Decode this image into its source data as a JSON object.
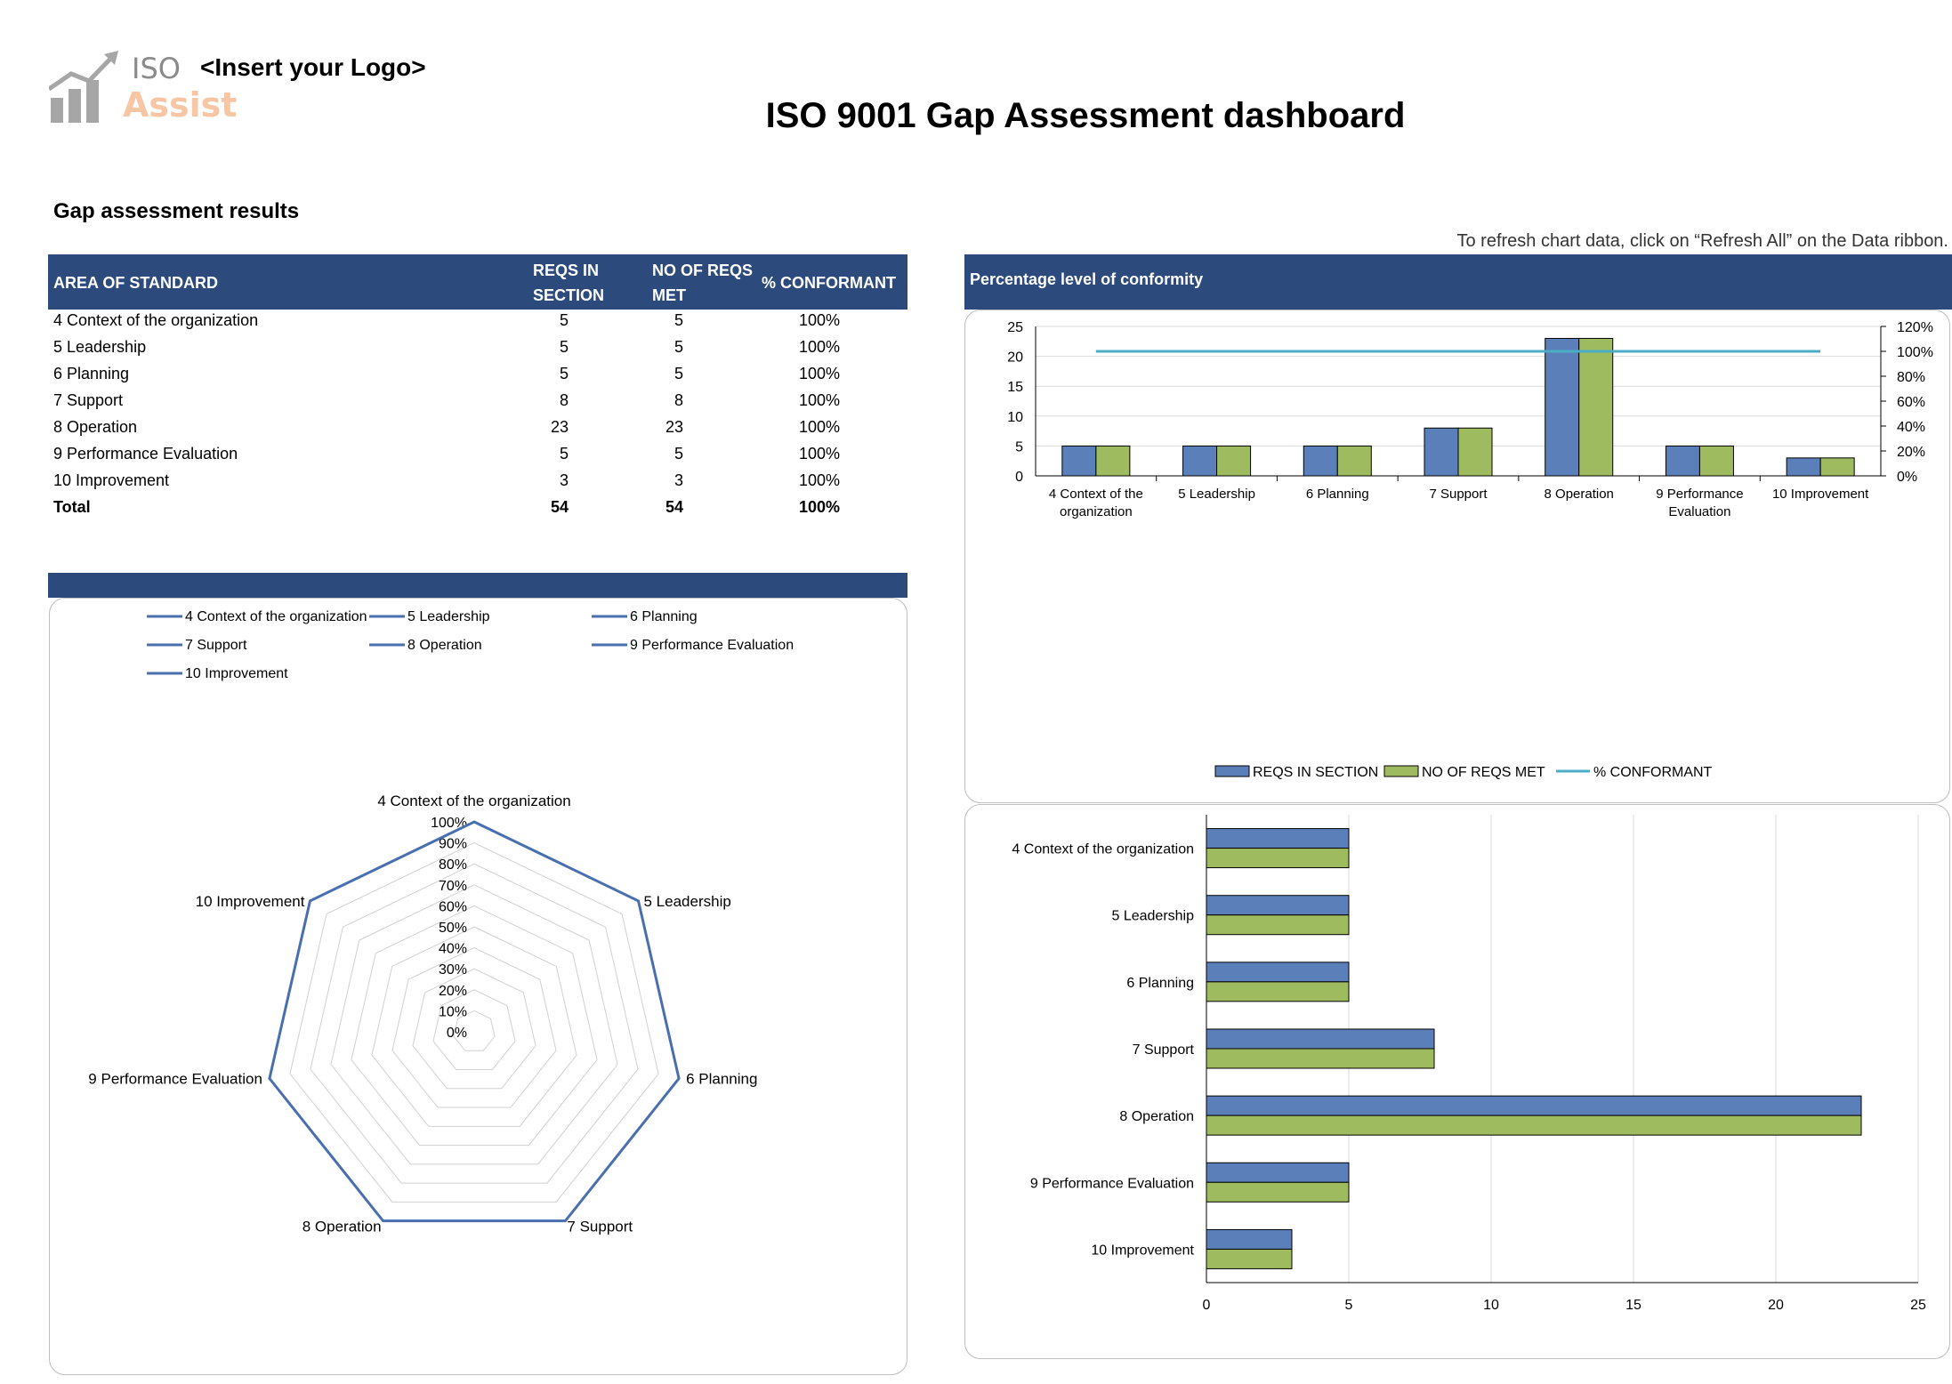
{
  "header": {
    "logo_top": "ISO",
    "logo_bottom": "Assist",
    "insert_logo": "<Insert your Logo>",
    "title": "ISO 9001 Gap Assessment dashboard"
  },
  "section_title": "Gap assessment results",
  "refresh_note": "To refresh chart data, click on “Refresh All” on the Data ribbon.",
  "table": {
    "headers": {
      "area": "AREA OF STANDARD",
      "reqs_1": "REQS IN",
      "reqs_2": "SECTION",
      "met_1": "NO OF REQS",
      "met_2": "MET",
      "pct": "% CONFORMANT"
    },
    "rows": [
      {
        "area": "4 Context of the organization",
        "reqs": "5",
        "met": "5",
        "pct": "100%"
      },
      {
        "area": "5 Leadership",
        "reqs": "5",
        "met": "5",
        "pct": "100%"
      },
      {
        "area": "6 Planning",
        "reqs": "5",
        "met": "5",
        "pct": "100%"
      },
      {
        "area": "7 Support",
        "reqs": "8",
        "met": "8",
        "pct": "100%"
      },
      {
        "area": "8 Operation",
        "reqs": "23",
        "met": "23",
        "pct": "100%"
      },
      {
        "area": "9 Performance Evaluation",
        "reqs": "5",
        "met": "5",
        "pct": "100%"
      },
      {
        "area": "10 Improvement",
        "reqs": "3",
        "met": "3",
        "pct": "100%"
      }
    ],
    "total": {
      "area": "Total",
      "reqs": "54",
      "met": "54",
      "pct": "100%"
    }
  },
  "colors": {
    "band": "#2d4a7c",
    "series_reqs": "#5b7fb9",
    "series_met": "#9fbb5f",
    "series_pct": "#4bacc6",
    "radar_line": "#4a6fae"
  },
  "chart_data": [
    {
      "type": "bar",
      "title": "Percentage level of conformity",
      "categories": [
        "4 Context of the organization",
        "5 Leadership",
        "6 Planning",
        "7 Support",
        "8 Operation",
        "9 Performance Evaluation",
        "10 Improvement"
      ],
      "series": [
        {
          "name": "REQS IN SECTION",
          "values": [
            5,
            5,
            5,
            8,
            23,
            5,
            3
          ],
          "axis": "primary"
        },
        {
          "name": "NO OF REQS MET",
          "values": [
            5,
            5,
            5,
            8,
            23,
            5,
            3
          ],
          "axis": "primary"
        },
        {
          "name": "% CONFORMANT",
          "type": "line",
          "values": [
            1,
            1,
            1,
            1,
            1,
            1,
            1
          ],
          "axis": "secondary"
        }
      ],
      "ylim": [
        0,
        25
      ],
      "yticks": [
        "0",
        "5",
        "10",
        "15",
        "20",
        "25"
      ],
      "y2lim": [
        0,
        1.2
      ],
      "y2ticks": [
        "0%",
        "20%",
        "40%",
        "60%",
        "80%",
        "100%",
        "120%"
      ],
      "grid": true,
      "legend": "bottom"
    },
    {
      "type": "radar",
      "categories": [
        "4 Context of the organization",
        "5 Leadership",
        "6 Planning",
        "7 Support",
        "8 Operation",
        "9 Performance Evaluation",
        "10 Improvement"
      ],
      "values": [
        1,
        1,
        1,
        1,
        1,
        1,
        1
      ],
      "rlim": [
        0,
        1
      ],
      "rticks": [
        "0%",
        "10%",
        "20%",
        "30%",
        "40%",
        "50%",
        "60%",
        "70%",
        "80%",
        "90%",
        "100%"
      ],
      "legend": "top",
      "legend_entries": [
        "4 Context of the organization",
        "5 Leadership",
        "6 Planning",
        "7 Support",
        "8 Operation",
        "9 Performance Evaluation",
        "10 Improvement"
      ]
    },
    {
      "type": "bar",
      "orientation": "horizontal",
      "categories": [
        "4 Context of the organization",
        "5 Leadership",
        "6 Planning",
        "7 Support",
        "8 Operation",
        "9 Performance Evaluation",
        "10 Improvement"
      ],
      "series": [
        {
          "values": [
            5,
            5,
            5,
            8,
            23,
            5,
            3
          ]
        },
        {
          "values": [
            5,
            5,
            5,
            8,
            23,
            5,
            3
          ]
        }
      ],
      "xlim": [
        0,
        25
      ],
      "xticks": [
        "0",
        "5",
        "10",
        "15",
        "20",
        "25"
      ],
      "grid": true
    }
  ]
}
